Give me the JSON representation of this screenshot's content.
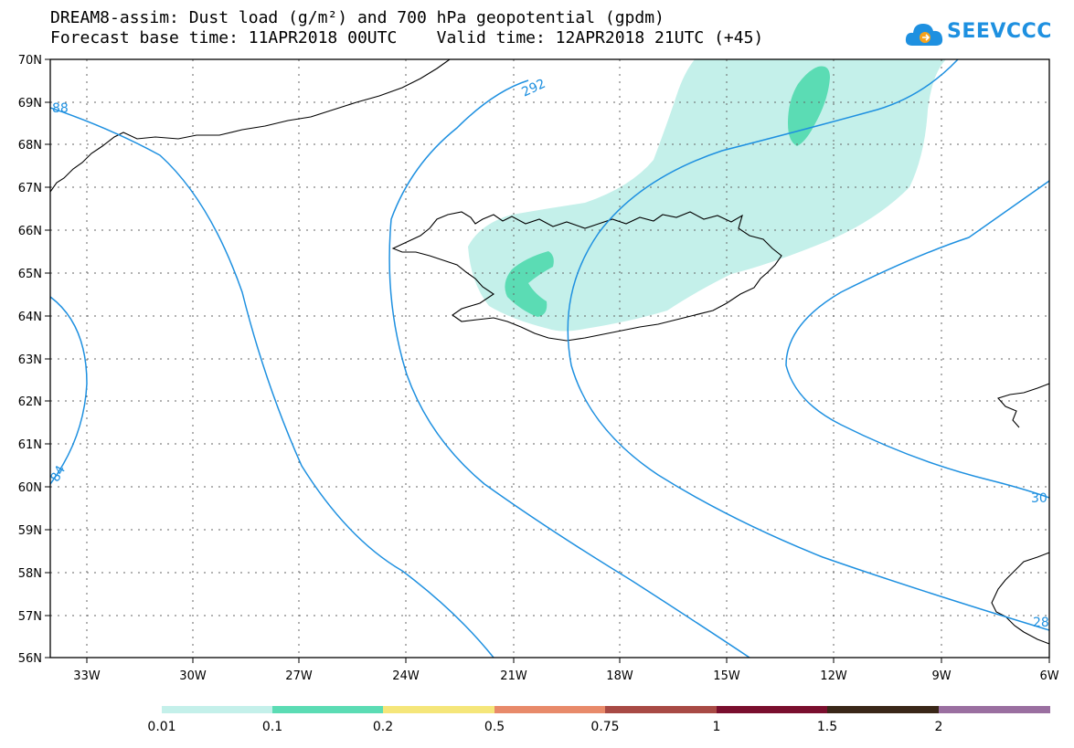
{
  "title": {
    "line1": "DREAM8-assim: Dust load (g/m²) and 700 hPa geopotential (gpdm)",
    "line2": "Forecast base time: 11APR2018 00UTC    Valid time: 12APR2018 21UTC (+45)"
  },
  "logo": {
    "text": "SEEVCCC"
  },
  "map": {
    "lat_labels": [
      "70N",
      "69N",
      "68N",
      "67N",
      "66N",
      "65N",
      "64N",
      "63N",
      "62N",
      "61N",
      "60N",
      "59N",
      "58N",
      "57N",
      "56N"
    ],
    "lon_labels": [
      "33W",
      "30W",
      "27W",
      "24W",
      "21W",
      "18W",
      "15W",
      "12W",
      "9W",
      "6W"
    ],
    "contour_labels": [
      "88",
      "292",
      "84",
      "30",
      "28"
    ],
    "colors": {
      "contour": "#1e90e0",
      "dust_light": "#c4f0ea",
      "dust_medium": "#5bdcb4"
    }
  },
  "colorbar": {
    "labels": [
      "0.01",
      "0.1",
      "0.2",
      "0.5",
      "0.75",
      "1",
      "1.5",
      "2"
    ],
    "colors": [
      "#c4f0ea",
      "#5bdcb4",
      "#f5e67a",
      "#e88a6a",
      "#a84a45",
      "#7a0f2e",
      "#3a2718",
      "#9a6fa0"
    ]
  }
}
